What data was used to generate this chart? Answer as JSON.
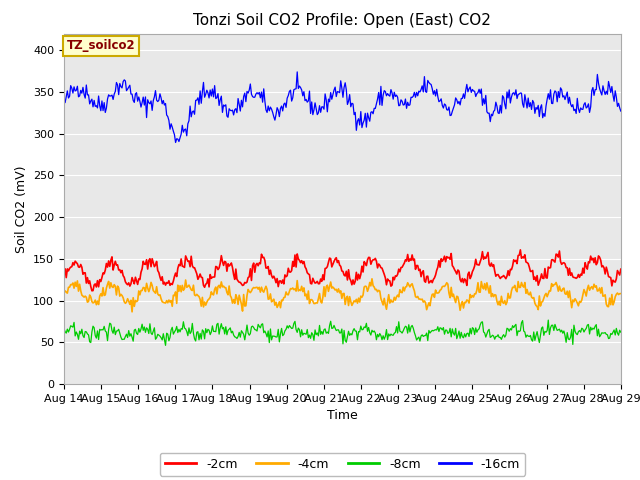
{
  "title": "Tonzi Soil CO2 Profile: Open (East) CO2",
  "xlabel": "Time",
  "ylabel": "Soil CO2 (mV)",
  "ylim": [
    0,
    420
  ],
  "yticks": [
    0,
    50,
    100,
    150,
    200,
    250,
    300,
    350,
    400
  ],
  "x_labels": [
    "Aug 14",
    "Aug 15",
    "Aug 16",
    "Aug 17",
    "Aug 18",
    "Aug 19",
    "Aug 20",
    "Aug 21",
    "Aug 22",
    "Aug 23",
    "Aug 24",
    "Aug 25",
    "Aug 26",
    "Aug 27",
    "Aug 28",
    "Aug 29"
  ],
  "n_points": 500,
  "legend_entries": [
    "-2cm",
    "-4cm",
    "-8cm",
    "-16cm"
  ],
  "legend_colors": [
    "#ff0000",
    "#ffaa00",
    "#00cc00",
    "#0000ff"
  ],
  "line_colors": [
    "#ff0000",
    "#ffaa00",
    "#00cc00",
    "#0000ff"
  ],
  "annotation_text": "TZ_soilco2",
  "annotation_bg": "#ffffcc",
  "annotation_border": "#ccaa00",
  "plot_bg": "#e8e8e8",
  "fig_bg": "#ffffff",
  "grid_color": "#ffffff",
  "title_fontsize": 11,
  "axis_label_fontsize": 9,
  "tick_fontsize": 8
}
